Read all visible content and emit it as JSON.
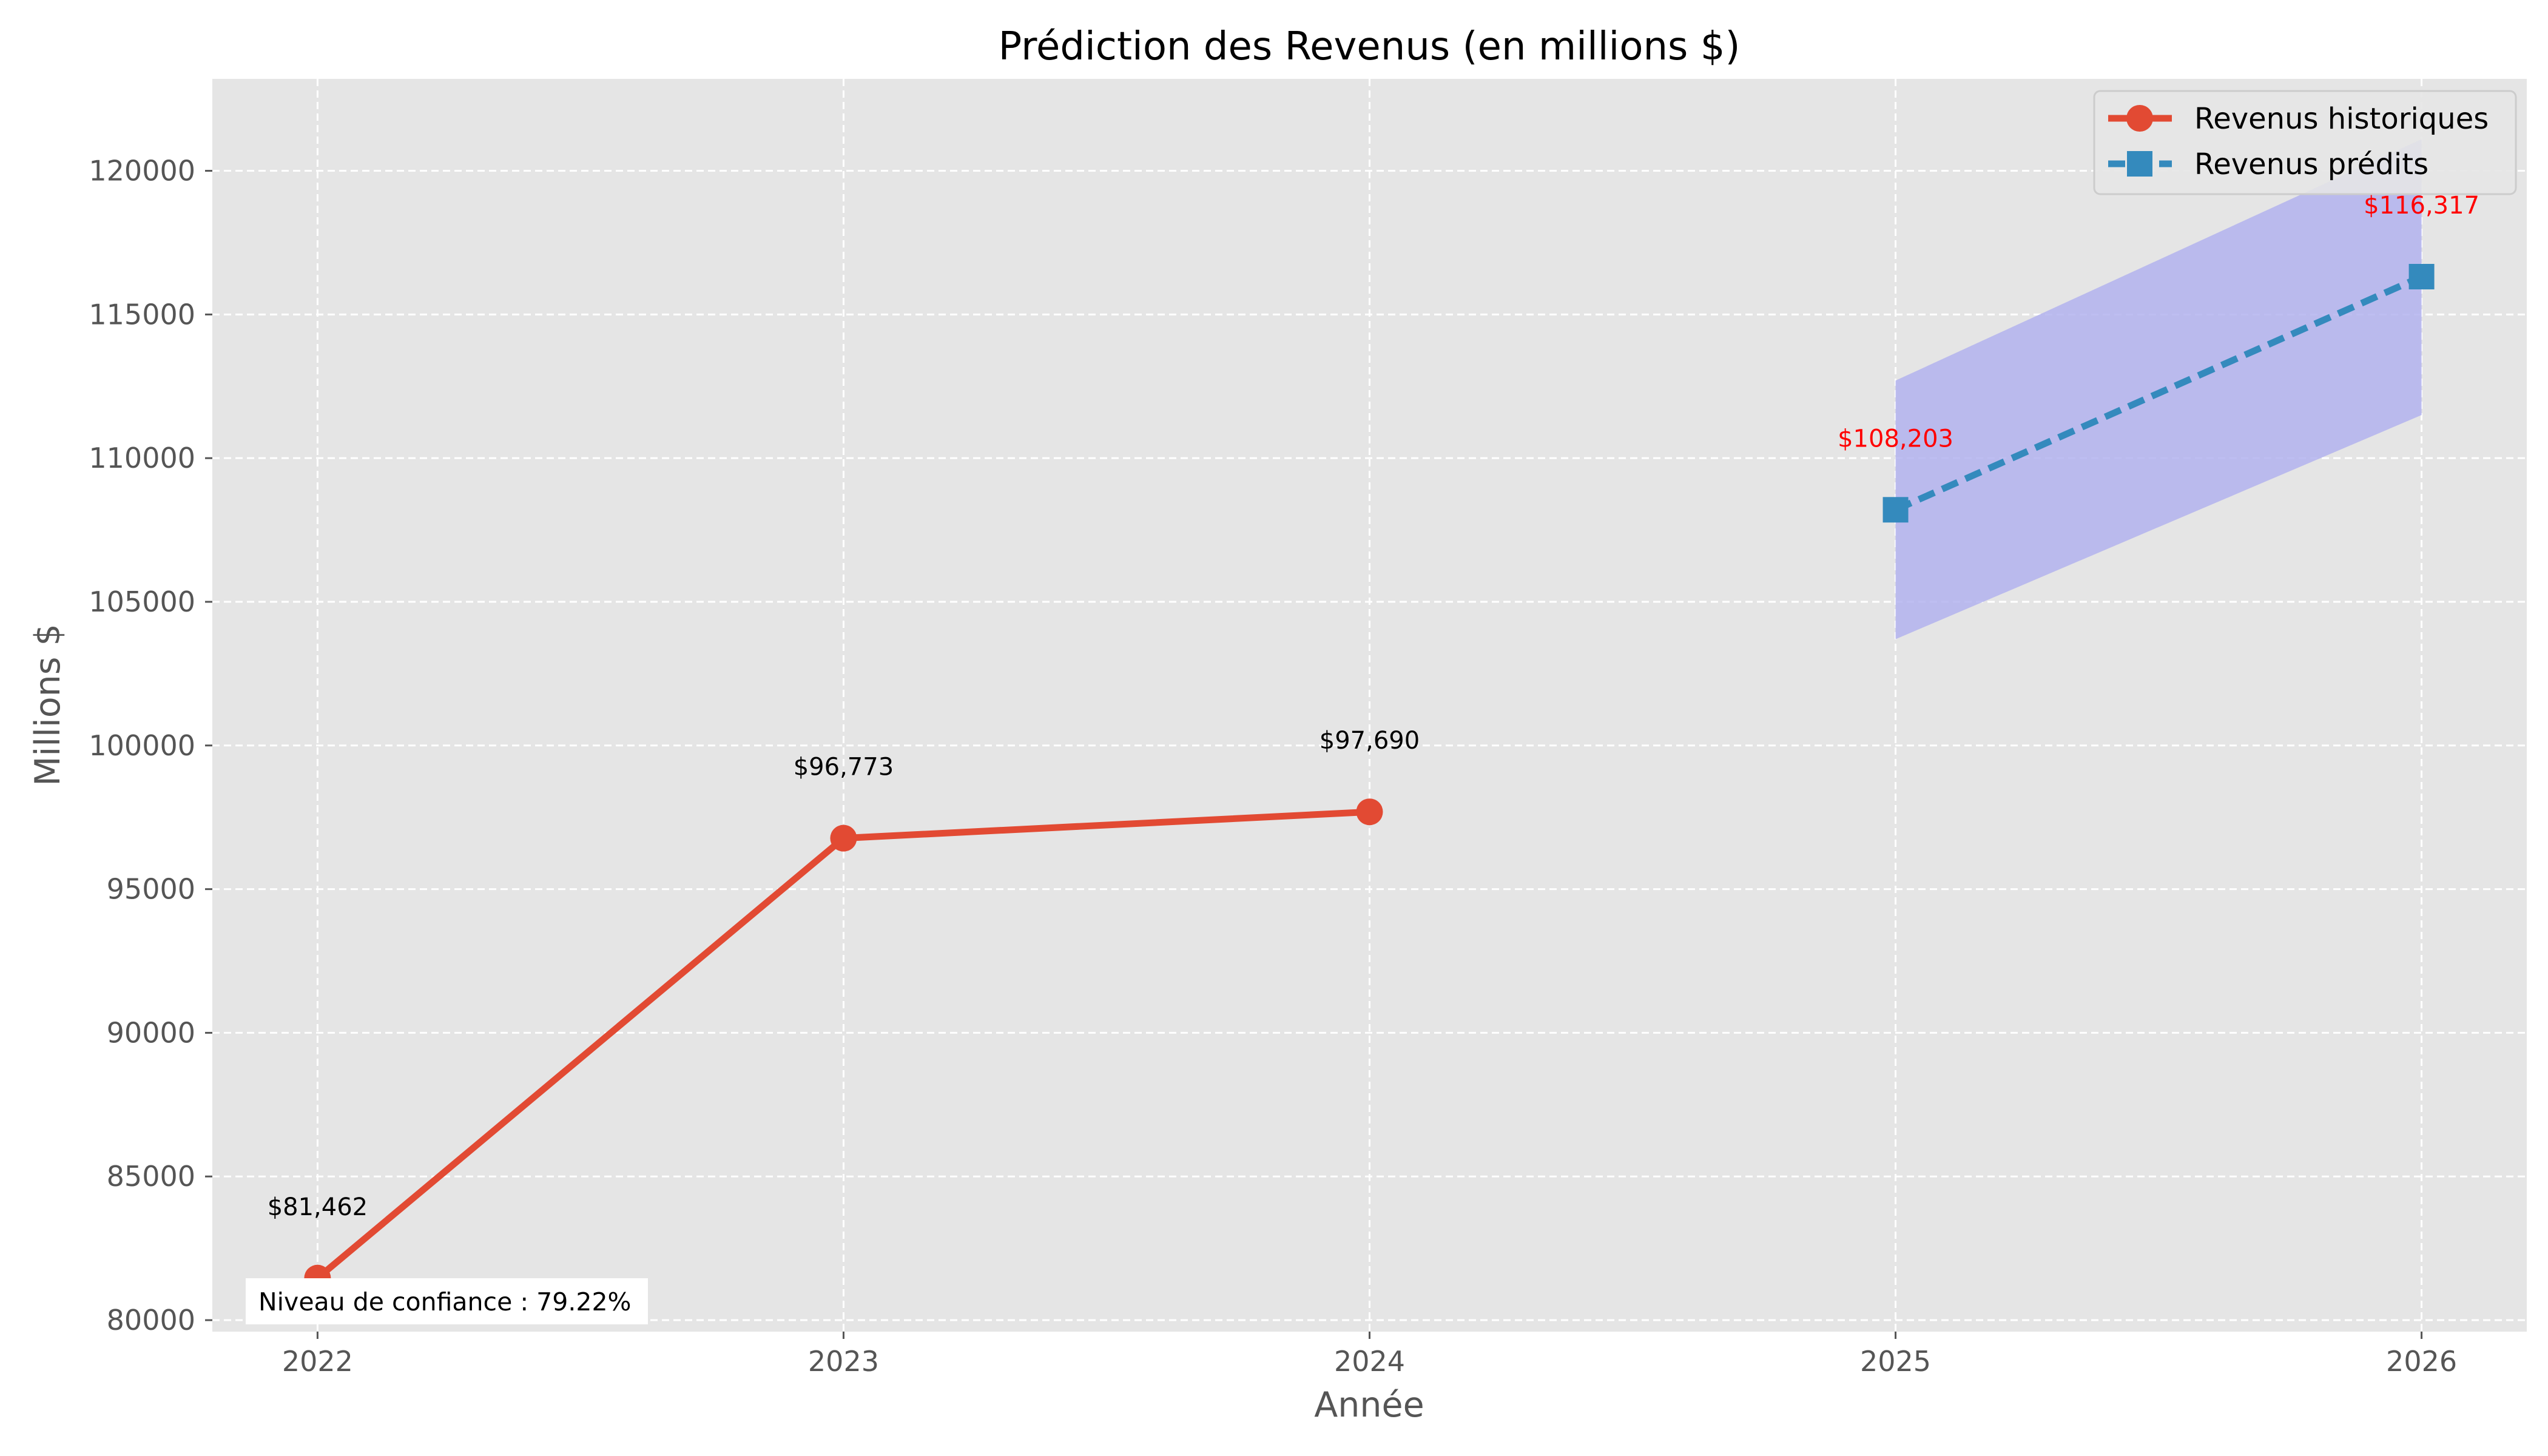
{
  "chart_data": {
    "type": "line",
    "title": "Prédiction des Revenus (en millions $)",
    "xlabel": "Année",
    "ylabel": "Millions $",
    "xlim": [
      2021.8,
      2026.2
    ],
    "ylim": [
      79600,
      123200
    ],
    "x_ticks": [
      "2022",
      "2023",
      "2024",
      "2025",
      "2026"
    ],
    "y_ticks": [
      "80000",
      "85000",
      "90000",
      "95000",
      "100000",
      "105000",
      "110000",
      "115000",
      "120000"
    ],
    "grid": true,
    "legend_position": "top-right",
    "series": [
      {
        "name": "Revenus historiques",
        "style": "solid",
        "marker": "circle",
        "color": "#E24A33",
        "x": [
          2022,
          2023,
          2024
        ],
        "values": [
          81462,
          96773,
          97690
        ],
        "labels": [
          "$81,462",
          "$96,773",
          "$97,690"
        ],
        "label_color": "#000000"
      },
      {
        "name": "Revenus prédits",
        "style": "dashed",
        "marker": "square",
        "color": "#348ABD",
        "x": [
          2025,
          2026
        ],
        "values": [
          108203,
          116317
        ],
        "labels": [
          "$108,203",
          "$116,317"
        ],
        "label_color": "#FF0000"
      }
    ],
    "confidence_band": {
      "x": [
        2025,
        2026
      ],
      "lower": [
        103700,
        111500
      ],
      "upper": [
        112700,
        121100
      ],
      "color": "#B3B3EE"
    },
    "annotation": "Niveau de confiance : 79.22%"
  }
}
